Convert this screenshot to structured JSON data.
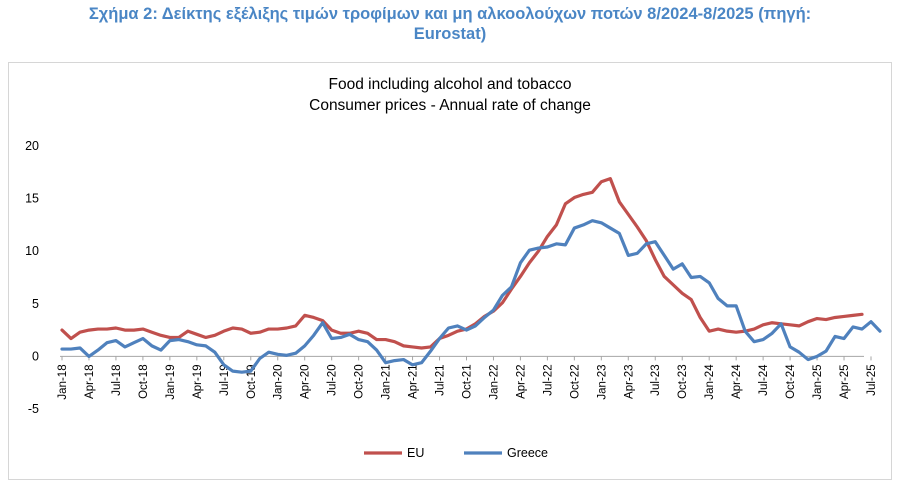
{
  "caption": {
    "line1": "Σχήμα 2: Δείκτης εξέλιξης τιμών τροφίμων και μη αλκοολούχων ποτών 8/2024-8/2025 (πηγή:",
    "line2": "Eurostat)"
  },
  "chart_data": {
    "type": "line",
    "title": "Food including alcohol and tobacco",
    "subtitle": "Consumer prices - Annual rate of change",
    "xlabel": "",
    "ylabel": "",
    "ylim": [
      -5,
      20
    ],
    "yticks": [
      -5,
      0,
      5,
      10,
      15,
      20
    ],
    "grid": false,
    "legend_position": "bottom-center",
    "x_tick_labels": [
      "Jan-18",
      "Apr-18",
      "Jul-18",
      "Oct-18",
      "Jan-19",
      "Apr-19",
      "Jul-19",
      "Oct-19",
      "Jan-20",
      "Apr-20",
      "Jul-20",
      "Oct-20",
      "Jan-21",
      "Apr-21",
      "Jul-21",
      "Oct-21",
      "Jan-22",
      "Apr-22",
      "Jul-22",
      "Oct-22",
      "Jan-23",
      "Apr-23",
      "Jul-23",
      "Oct-23",
      "Jan-24",
      "Apr-24",
      "Jul-24",
      "Oct-24",
      "Jan-25",
      "Apr-25",
      "Jul-25"
    ],
    "x_start": "Jan-18",
    "series": [
      {
        "name": "EU",
        "color": "#c0504d",
        "values": [
          2.5,
          1.7,
          2.3,
          2.5,
          2.6,
          2.6,
          2.7,
          2.5,
          2.5,
          2.6,
          2.3,
          2.0,
          1.8,
          1.8,
          2.4,
          2.1,
          1.8,
          2.0,
          2.4,
          2.7,
          2.6,
          2.2,
          2.3,
          2.6,
          2.6,
          2.7,
          2.9,
          3.9,
          3.7,
          3.4,
          2.5,
          2.2,
          2.2,
          2.4,
          2.2,
          1.6,
          1.6,
          1.4,
          1.0,
          0.9,
          0.8,
          0.9,
          1.7,
          2.0,
          2.4,
          2.6,
          3.1,
          3.8,
          4.3,
          5.1,
          6.4,
          7.6,
          8.9,
          10.0,
          11.4,
          12.5,
          14.5,
          15.1,
          15.4,
          15.6,
          16.6,
          16.9,
          14.7,
          13.5,
          12.3,
          11.0,
          9.2,
          7.6,
          6.8,
          6.0,
          5.4,
          3.7,
          2.4,
          2.6,
          2.4,
          2.3,
          2.4,
          2.6,
          3.0,
          3.2,
          3.1,
          3.0,
          2.9,
          3.3,
          3.6,
          3.5,
          3.7,
          3.8,
          3.9,
          4.0
        ]
      },
      {
        "name": "Greece",
        "color": "#4f81bd",
        "values": [
          0.7,
          0.7,
          0.8,
          0.0,
          0.6,
          1.3,
          1.5,
          0.9,
          1.3,
          1.7,
          1.0,
          0.6,
          1.5,
          1.6,
          1.4,
          1.1,
          1.0,
          0.4,
          -0.8,
          -1.4,
          -1.5,
          -1.4,
          -0.2,
          0.4,
          0.2,
          0.1,
          0.3,
          1.0,
          2.0,
          3.2,
          1.7,
          1.8,
          2.1,
          1.6,
          1.4,
          0.6,
          -0.6,
          -0.4,
          -0.3,
          -0.8,
          -0.6,
          0.5,
          1.7,
          2.7,
          2.9,
          2.5,
          2.9,
          3.7,
          4.4,
          5.8,
          6.6,
          8.9,
          10.1,
          10.3,
          10.4,
          10.7,
          10.6,
          12.2,
          12.5,
          12.9,
          12.7,
          12.2,
          11.7,
          9.6,
          9.8,
          10.7,
          10.9,
          9.6,
          8.3,
          8.8,
          7.5,
          7.6,
          7.0,
          5.5,
          4.8,
          4.8,
          2.4,
          1.4,
          1.6,
          2.2,
          3.1,
          0.9,
          0.4,
          -0.3,
          0.0,
          0.5,
          1.9,
          1.7,
          2.8,
          2.6,
          3.3,
          2.4
        ]
      }
    ]
  }
}
